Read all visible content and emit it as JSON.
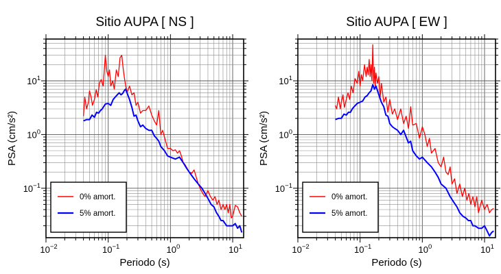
{
  "chart_data": [
    {
      "type": "line",
      "title": "Sitio AUPA [ NS ]",
      "xlabel": "Periodo (s)",
      "ylabel": "PSA (cm/s²)",
      "xscale": "log",
      "yscale": "log",
      "xlim": [
        0.01,
        15
      ],
      "ylim": [
        0.012,
        60
      ],
      "grid": true,
      "legend_position": "bottom-left",
      "x_tick_labels": [
        {
          "value": 0.01,
          "base": "10",
          "exp": "−2"
        },
        {
          "value": 0.1,
          "base": "10",
          "exp": "−1"
        },
        {
          "value": 1,
          "base": "10",
          "exp": "0"
        },
        {
          "value": 10,
          "base": "10",
          "exp": "1"
        }
      ],
      "y_tick_labels": [
        {
          "value": 0.1,
          "base": "10",
          "exp": "−1"
        },
        {
          "value": 1,
          "base": "10",
          "exp": "0"
        },
        {
          "value": 10,
          "base": "10",
          "exp": "1"
        }
      ],
      "series": [
        {
          "name": "0% amort.",
          "color": "#ff0000",
          "x": [
            0.04,
            0.042,
            0.045,
            0.048,
            0.05,
            0.053,
            0.056,
            0.06,
            0.064,
            0.068,
            0.072,
            0.077,
            0.083,
            0.09,
            0.095,
            0.1,
            0.105,
            0.11,
            0.118,
            0.125,
            0.135,
            0.145,
            0.155,
            0.165,
            0.175,
            0.185,
            0.2,
            0.22,
            0.24,
            0.26,
            0.28,
            0.3,
            0.33,
            0.36,
            0.4,
            0.45,
            0.5,
            0.55,
            0.6,
            0.65,
            0.7,
            0.75,
            0.8,
            0.85,
            0.9,
            1.0,
            1.1,
            1.2,
            1.3,
            1.4,
            1.5,
            1.6,
            1.7,
            1.8,
            2.0,
            2.2,
            2.4,
            2.6,
            2.8,
            3.0,
            3.3,
            3.6,
            4.0,
            4.4,
            4.8,
            5.2,
            5.6,
            6.0,
            6.5,
            7.0,
            7.5,
            8.0,
            8.5,
            9.0,
            9.5,
            10.0,
            11.0,
            12.0,
            13.0,
            14.0
          ],
          "y": [
            2.2,
            5.0,
            3.0,
            4.0,
            6.5,
            5.0,
            3.5,
            4.5,
            6.8,
            5.0,
            9.0,
            10.5,
            8.0,
            30.0,
            15.0,
            12.0,
            16.0,
            8.0,
            10.0,
            7.0,
            16.0,
            12.0,
            27.0,
            30.0,
            16.0,
            10.0,
            6.0,
            8.0,
            5.5,
            6.0,
            3.5,
            4.0,
            2.5,
            2.8,
            2.8,
            3.4,
            2.3,
            1.8,
            1.5,
            2.8,
            1.0,
            1.2,
            0.9,
            0.7,
            0.55,
            0.55,
            0.5,
            0.52,
            0.45,
            0.5,
            0.4,
            0.3,
            0.28,
            0.25,
            0.2,
            0.19,
            0.22,
            0.16,
            0.12,
            0.1,
            0.08,
            0.07,
            0.09,
            0.07,
            0.06,
            0.07,
            0.05,
            0.06,
            0.04,
            0.05,
            0.04,
            0.05,
            0.035,
            0.05,
            0.028,
            0.03,
            0.048,
            0.045,
            0.035,
            0.03
          ]
        },
        {
          "name": "5% amort.",
          "color": "#0000ff",
          "x": [
            0.04,
            0.045,
            0.05,
            0.055,
            0.06,
            0.065,
            0.07,
            0.075,
            0.08,
            0.09,
            0.1,
            0.11,
            0.12,
            0.13,
            0.14,
            0.15,
            0.16,
            0.17,
            0.18,
            0.19,
            0.2,
            0.22,
            0.24,
            0.26,
            0.28,
            0.3,
            0.33,
            0.36,
            0.4,
            0.45,
            0.5,
            0.55,
            0.6,
            0.65,
            0.7,
            0.8,
            0.9,
            1.0,
            1.2,
            1.4,
            1.6,
            1.8,
            2.0,
            2.4,
            2.8,
            3.2,
            3.6,
            4.0,
            4.5,
            5.0,
            5.5,
            6.0,
            6.5,
            7.0,
            8.0,
            9.0,
            10.0,
            11.0,
            12.0,
            13.0,
            14.0
          ],
          "y": [
            1.8,
            1.9,
            1.9,
            2.3,
            2.1,
            2.6,
            2.5,
            2.8,
            3.0,
            3.7,
            3.8,
            3.5,
            4.5,
            5.0,
            5.5,
            6.0,
            5.5,
            5.8,
            6.5,
            7.0,
            6.0,
            4.5,
            3.2,
            2.2,
            2.3,
            1.8,
            1.4,
            1.5,
            1.3,
            1.2,
            1.2,
            0.95,
            0.85,
            0.75,
            0.6,
            0.5,
            0.4,
            0.38,
            0.35,
            0.38,
            0.3,
            0.24,
            0.2,
            0.15,
            0.12,
            0.1,
            0.08,
            0.065,
            0.05,
            0.045,
            0.035,
            0.03,
            0.025,
            0.025,
            0.02,
            0.02,
            0.02,
            0.022,
            0.018,
            0.02,
            0.015
          ]
        }
      ]
    },
    {
      "type": "line",
      "title": "Sitio AUPA [ EW ]",
      "xlabel": "Periodo (s)",
      "ylabel": "PSA (cm/s²)",
      "xscale": "log",
      "yscale": "log",
      "xlim": [
        0.01,
        15
      ],
      "ylim": [
        0.012,
        60
      ],
      "grid": true,
      "legend_position": "bottom-left",
      "x_tick_labels": [
        {
          "value": 0.01,
          "base": "10",
          "exp": "−2"
        },
        {
          "value": 0.1,
          "base": "10",
          "exp": "−1"
        },
        {
          "value": 1,
          "base": "10",
          "exp": "0"
        },
        {
          "value": 10,
          "base": "10",
          "exp": "1"
        }
      ],
      "y_tick_labels": [
        {
          "value": 0.1,
          "base": "10",
          "exp": "−1"
        },
        {
          "value": 1,
          "base": "10",
          "exp": "0"
        },
        {
          "value": 10,
          "base": "10",
          "exp": "1"
        }
      ],
      "series": [
        {
          "name": "0% amort.",
          "color": "#ff0000",
          "x": [
            0.04,
            0.042,
            0.045,
            0.048,
            0.05,
            0.053,
            0.056,
            0.06,
            0.064,
            0.068,
            0.072,
            0.077,
            0.083,
            0.09,
            0.095,
            0.1,
            0.105,
            0.11,
            0.118,
            0.125,
            0.13,
            0.135,
            0.14,
            0.145,
            0.15,
            0.155,
            0.16,
            0.165,
            0.17,
            0.175,
            0.18,
            0.19,
            0.2,
            0.21,
            0.22,
            0.24,
            0.26,
            0.28,
            0.3,
            0.33,
            0.36,
            0.4,
            0.45,
            0.5,
            0.55,
            0.6,
            0.65,
            0.7,
            0.8,
            0.9,
            1.0,
            1.1,
            1.2,
            1.3,
            1.4,
            1.6,
            1.8,
            2.0,
            2.2,
            2.4,
            2.6,
            2.8,
            3.0,
            3.3,
            3.6,
            4.0,
            4.4,
            4.8,
            5.2,
            5.6,
            6.0,
            6.5,
            7.0,
            7.5,
            8.0,
            9.0,
            10.0,
            11.0,
            12.0,
            13.0,
            14.0
          ],
          "y": [
            3.5,
            3.0,
            5.0,
            3.0,
            4.0,
            5.5,
            3.2,
            4.5,
            6.0,
            4.5,
            8.0,
            6.0,
            11.0,
            9.0,
            15.0,
            8.0,
            13.0,
            10.0,
            20.0,
            12.0,
            18.0,
            13.0,
            25.0,
            12.0,
            20.0,
            10.0,
            47.0,
            9.0,
            18.0,
            8.0,
            14.0,
            9.0,
            12.0,
            5.0,
            9.0,
            4.0,
            5.0,
            2.6,
            4.5,
            2.4,
            3.0,
            1.9,
            3.0,
            1.6,
            2.2,
            1.3,
            3.3,
            1.5,
            1.6,
            0.85,
            1.4,
            1.0,
            0.6,
            0.85,
            0.45,
            0.55,
            0.3,
            0.25,
            0.38,
            0.2,
            0.18,
            0.25,
            0.12,
            0.15,
            0.08,
            0.12,
            0.07,
            0.1,
            0.06,
            0.08,
            0.05,
            0.07,
            0.045,
            0.07,
            0.035,
            0.06,
            0.04,
            0.05,
            0.035,
            0.04,
            0.042
          ]
        },
        {
          "name": "5% amort.",
          "color": "#0000ff",
          "x": [
            0.04,
            0.045,
            0.05,
            0.055,
            0.06,
            0.065,
            0.07,
            0.075,
            0.08,
            0.09,
            0.1,
            0.11,
            0.12,
            0.13,
            0.14,
            0.15,
            0.16,
            0.17,
            0.18,
            0.2,
            0.22,
            0.24,
            0.26,
            0.28,
            0.3,
            0.33,
            0.36,
            0.4,
            0.45,
            0.5,
            0.55,
            0.6,
            0.65,
            0.7,
            0.8,
            0.9,
            1.0,
            1.2,
            1.4,
            1.6,
            1.8,
            2.0,
            2.4,
            2.8,
            3.2,
            3.6,
            4.0,
            4.5,
            5.0,
            5.5,
            6.0,
            6.5,
            7.0,
            8.0,
            9.0,
            10.0,
            11.0,
            12.0,
            13.0,
            14.0
          ],
          "y": [
            1.9,
            2.0,
            2.0,
            2.4,
            2.3,
            2.6,
            2.6,
            3.0,
            3.3,
            3.8,
            4.0,
            4.2,
            5.0,
            5.3,
            6.0,
            6.5,
            8.5,
            7.0,
            8.0,
            5.5,
            4.0,
            3.3,
            2.3,
            2.2,
            1.6,
            1.4,
            1.3,
            1.2,
            1.0,
            1.2,
            0.9,
            0.7,
            0.75,
            0.5,
            0.4,
            0.35,
            0.38,
            0.3,
            0.25,
            0.2,
            0.16,
            0.12,
            0.1,
            0.07,
            0.055,
            0.045,
            0.035,
            0.03,
            0.028,
            0.025,
            0.025,
            0.02,
            0.02,
            0.018,
            0.018,
            0.02,
            0.016,
            0.013,
            0.015,
            0.016
          ]
        }
      ]
    }
  ]
}
